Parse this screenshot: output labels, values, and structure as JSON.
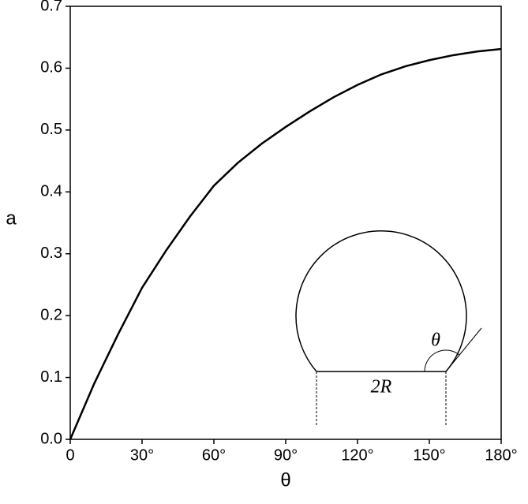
{
  "chart_data": {
    "type": "line",
    "x_label": "θ",
    "y_label": "a",
    "x": [
      0,
      10,
      20,
      30,
      40,
      50,
      60,
      70,
      80,
      90,
      100,
      110,
      120,
      130,
      140,
      150,
      160,
      170,
      180
    ],
    "series": [
      {
        "color": "#000000",
        "values": [
          0,
          0.09,
          0.17,
          0.245,
          0.305,
          0.36,
          0.41,
          0.447,
          0.478,
          0.505,
          0.53,
          0.553,
          0.573,
          0.59,
          0.603,
          0.613,
          0.621,
          0.627,
          0.631
        ]
      }
    ],
    "xlim": [
      0,
      180
    ],
    "xticks": [
      0,
      {
        "value": 30,
        "label": "30°"
      },
      {
        "value": 60,
        "label": "60°"
      },
      {
        "value": 90,
        "label": "90°"
      },
      {
        "value": 120,
        "label": "120°"
      },
      {
        "value": 150,
        "label": "150°"
      },
      {
        "value": 180,
        "label": "180°"
      }
    ],
    "ylim": [
      0,
      0.7
    ],
    "yticks": [
      {
        "value": 0,
        "label": "0.0"
      },
      0.1,
      0.2,
      0.3,
      0.4,
      0.5,
      0.6,
      0.7
    ],
    "inset": {
      "angle_label": "θ",
      "base_label": "2R"
    }
  }
}
